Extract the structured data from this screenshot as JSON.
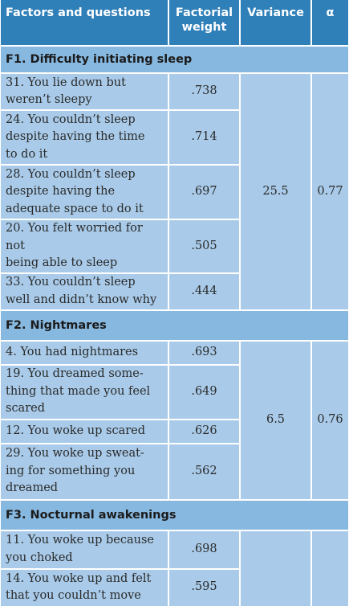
{
  "headers": {
    "factors": "Factors and questions",
    "weight": "Factorial weight",
    "variance": "Variance",
    "alpha": "α"
  },
  "factors": [
    {
      "title": "F1. Difficulty initiating sleep",
      "variance": "25.5",
      "alpha": "0.77",
      "items": [
        {
          "question": "31. You lie down but\nweren’t sleepy",
          "weight": ".738"
        },
        {
          "question": "24. You couldn’t sleep\ndespite having the time\nto do it",
          "weight": ".714"
        },
        {
          "question": "28. You couldn’t sleep\ndespite having the\n adequate space to do it",
          "weight": ".697"
        },
        {
          "question": "20. You felt worried for not\nbeing able to sleep",
          "weight": ".505"
        },
        {
          "question": "33. You couldn’t sleep\nwell and didn’t know why",
          "weight": ".444"
        }
      ]
    },
    {
      "title": "F2. Nightmares",
      "variance": "6.5",
      "alpha": "0.76",
      "items": [
        {
          "question": "4. You had nightmares",
          "weight": ".693"
        },
        {
          "question": "19. You dreamed some-\nthing that made you feel\nscared",
          "weight": ".649"
        },
        {
          "question": "12. You woke up scared",
          "weight": ".626"
        },
        {
          "question": "29. You woke up sweat-\ning for something you\ndreamed",
          "weight": ".562"
        }
      ]
    },
    {
      "title": "F3. Nocturnal awakenings",
      "variance": "",
      "alpha": "",
      "items": [
        {
          "question": "11. You woke up because\nyou choked",
          "weight": ".698"
        },
        {
          "question": "14. You woke up and felt\nthat you couldn’t move",
          "weight": ".595"
        }
      ]
    }
  ]
}
